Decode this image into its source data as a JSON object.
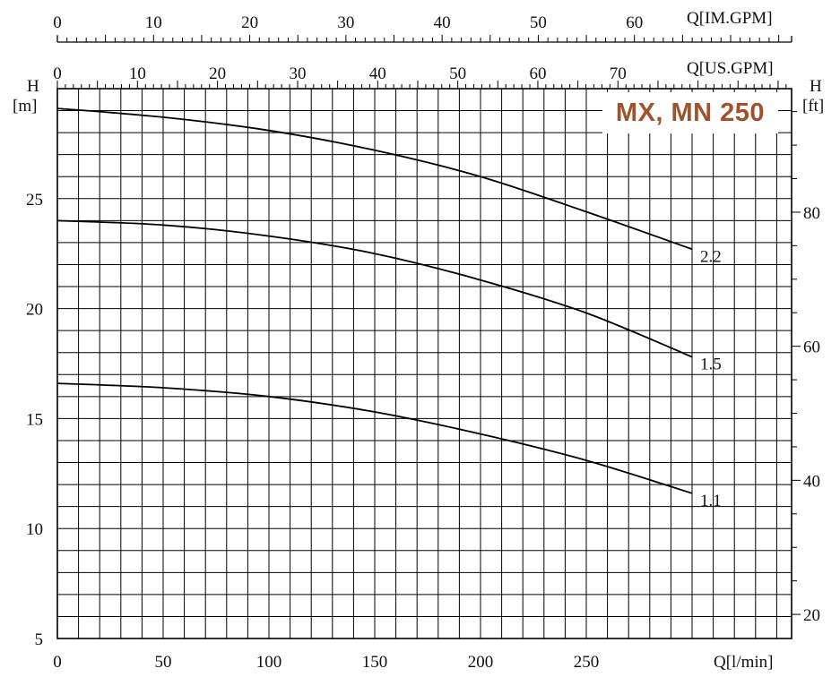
{
  "chart_data": {
    "type": "line",
    "title": "MX, MN 250",
    "title_color": "#a0522d",
    "x_primary": {
      "label": "Q[l/min]",
      "ticks": [
        0,
        50,
        100,
        150,
        200,
        250
      ],
      "range": [
        0,
        350
      ]
    },
    "x_us_gpm": {
      "label": "Q[US.GPM]",
      "ticks": [
        0,
        10,
        20,
        30,
        40,
        50,
        60,
        70
      ],
      "range": [
        0,
        92.46
      ]
    },
    "x_im_gpm": {
      "label": "Q[IM.GPM]",
      "ticks": [
        0,
        10,
        20,
        30,
        40,
        50,
        60
      ],
      "range": [
        0,
        76.99
      ]
    },
    "y_left": {
      "label_top": "H",
      "label_unit": "[m]",
      "ticks": [
        5,
        10,
        15,
        20,
        25
      ],
      "range": [
        5,
        30
      ]
    },
    "y_right": {
      "label_top": "H",
      "label_unit": "[ft]",
      "ticks": [
        20,
        40,
        60,
        80
      ],
      "range": [
        16.4,
        98.43
      ]
    },
    "grid": true,
    "series": [
      {
        "name": "2.2",
        "x": [
          0,
          50,
          100,
          150,
          200,
          250,
          300
        ],
        "y": [
          29.1,
          28.7,
          28.1,
          27.2,
          26.0,
          24.4,
          22.7
        ]
      },
      {
        "name": "1.5",
        "x": [
          0,
          50,
          100,
          150,
          200,
          250,
          300
        ],
        "y": [
          24.0,
          23.8,
          23.3,
          22.5,
          21.3,
          19.8,
          17.8
        ]
      },
      {
        "name": "1.1",
        "x": [
          0,
          50,
          100,
          150,
          200,
          250,
          300
        ],
        "y": [
          16.6,
          16.4,
          16.0,
          15.3,
          14.3,
          13.1,
          11.6
        ]
      }
    ]
  }
}
